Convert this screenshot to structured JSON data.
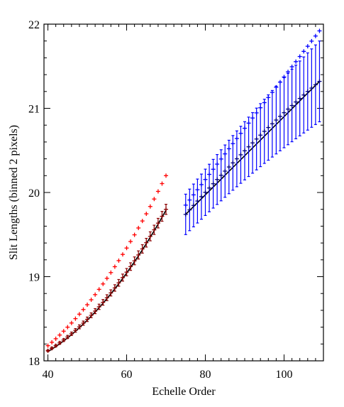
{
  "chart_data": {
    "type": "scatter",
    "title": "",
    "xlabel": "Echelle Order",
    "ylabel": "Slit Lengths (binned 2 pixels)",
    "xlim": [
      39,
      110
    ],
    "ylim": [
      18,
      22
    ],
    "x_major_ticks": [
      40,
      60,
      80,
      100
    ],
    "y_major_ticks": [
      18,
      19,
      20,
      21,
      22
    ],
    "x_minor_step": 2,
    "y_minor_step": 0.2,
    "grid": false,
    "legend": "none",
    "colors": {
      "red": "#ff0000",
      "darkred": "#8b0000",
      "blue": "#0000ff",
      "navy": "#000080",
      "fit": "#000000"
    },
    "series": [
      {
        "color": "red",
        "marker": "plus",
        "x_range": [
          40,
          70
        ],
        "y_start": 18.18,
        "y_mid": 18.98,
        "y_end": 20.2
      },
      {
        "color": "darkred",
        "marker": "plus",
        "error_bars": true,
        "x_range": [
          40,
          70
        ],
        "y_start": 18.12,
        "y_mid": 18.75,
        "y_end": 19.8,
        "err_start": 0.01,
        "err_end": 0.06,
        "fit_line": {
          "color": "fit",
          "y_start": 18.1,
          "y_end": 19.78
        }
      },
      {
        "color": "blue",
        "marker": "plus",
        "x_range": [
          75,
          109
        ],
        "y_start": 19.85,
        "y_end": 21.92
      },
      {
        "color": "navy",
        "marker": "plus",
        "error_bars": true,
        "error_bar_color": "blue",
        "x_range": [
          75,
          109
        ],
        "y_start": 19.74,
        "y_end": 21.32,
        "err_start": 0.24,
        "err_end": 0.48,
        "fit_line": {
          "color": "fit",
          "y_start": 19.74,
          "y_end": 21.32
        }
      }
    ]
  }
}
